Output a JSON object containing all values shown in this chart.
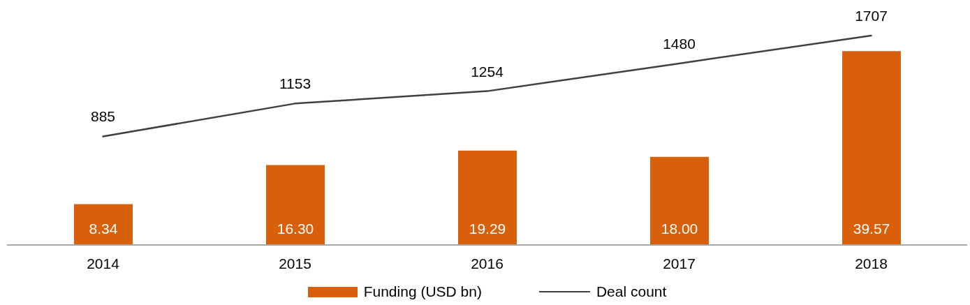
{
  "chart_data": {
    "type": "bar",
    "categories": [
      "2014",
      "2015",
      "2016",
      "2017",
      "2018"
    ],
    "series": [
      {
        "name": "Funding (USD bn)",
        "color": "#d9600b",
        "values": [
          8.34,
          16.3,
          19.29,
          18.0,
          39.57
        ],
        "value_labels": [
          "8.34",
          "16.30",
          "19.29",
          "18.00",
          "39.57"
        ]
      },
      {
        "name": "Deal count",
        "type": "line",
        "axis": "y2",
        "color": "#404040",
        "values": [
          885,
          1153,
          1254,
          1480,
          1707
        ],
        "value_labels": [
          "885",
          "1153",
          "1254",
          "1480",
          "1707"
        ]
      }
    ],
    "legend": "bottom",
    "marker": "none",
    "line_style": "solid"
  }
}
